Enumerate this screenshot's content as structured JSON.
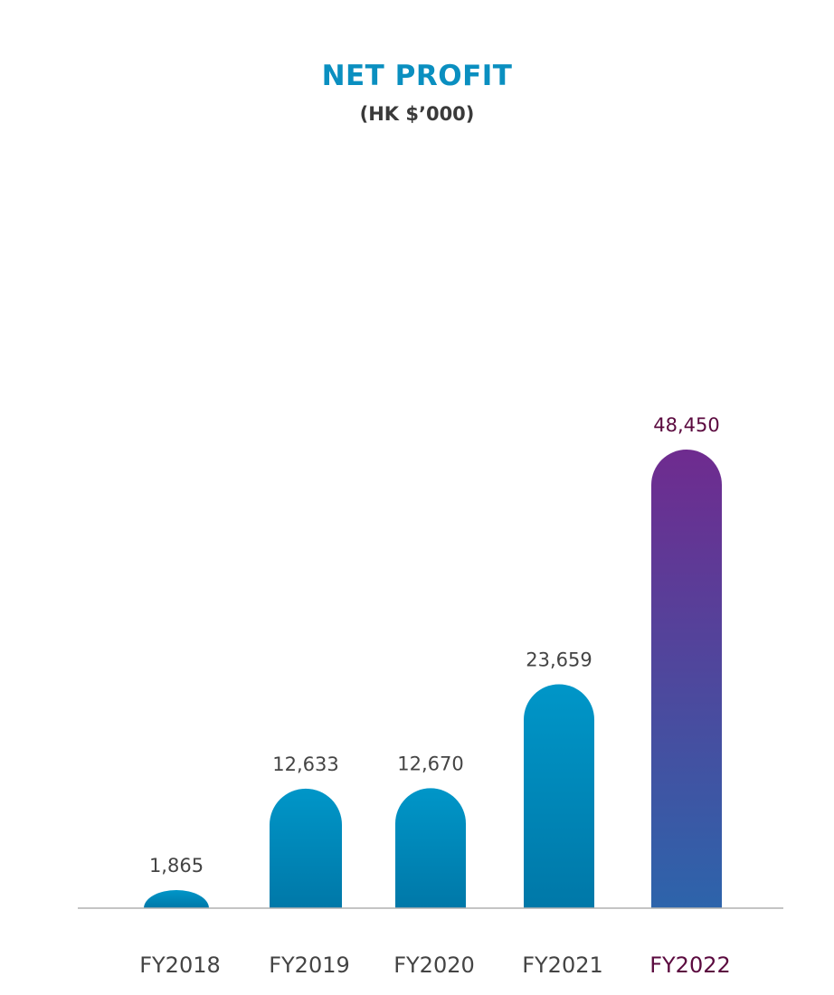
{
  "chart_data": {
    "type": "bar",
    "title": "NET PROFIT",
    "subtitle": "(HK $’000)",
    "categories": [
      "FY2018",
      "FY2019",
      "FY2020",
      "FY2021",
      "FY2022"
    ],
    "values": [
      1865,
      12633,
      12670,
      23659,
      48450
    ],
    "value_labels": [
      "1,865",
      "12,633",
      "12,670",
      "23,659",
      "48,450"
    ],
    "highlight_index": 4,
    "ylim": [
      0,
      48450
    ],
    "grid": false,
    "colors": {
      "title": "#0a8fc0",
      "bar_top": "#0096c8",
      "bar_bottom": "#0078a8",
      "highlight_top": "#6f2b8f",
      "highlight_bottom": "#2d64ab",
      "highlight_text": "#5b0a3f",
      "axis": "#b0b0b0",
      "text": "#444444"
    }
  }
}
